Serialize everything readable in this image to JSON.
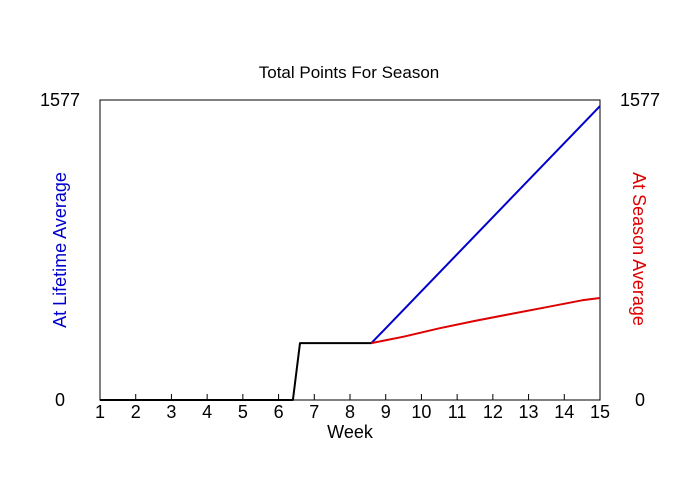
{
  "chart_data": {
    "type": "line",
    "title": "Total Points For Season",
    "xlabel": "Week",
    "ylabel_left": "At Lifetime Average",
    "ylabel_right": "At Season Average",
    "xlim": [
      1,
      15
    ],
    "ylim": [
      0,
      1577
    ],
    "x_ticks": [
      "1",
      "2",
      "3",
      "4",
      "5",
      "6",
      "7",
      "8",
      "9",
      "10",
      "11",
      "12",
      "13",
      "14",
      "15"
    ],
    "y_ticks_left": [
      "0",
      "1577"
    ],
    "y_ticks_right": [
      "0",
      "1577"
    ],
    "grid": false,
    "colors": {
      "actual": "#000000",
      "lifetime": "#0000cc",
      "season": "#dd0000"
    },
    "series": [
      {
        "key": "actual",
        "points": [
          [
            1,
            0
          ],
          [
            6.4,
            0
          ],
          [
            6.6,
            299
          ],
          [
            8.6,
            299
          ]
        ]
      },
      {
        "key": "lifetime",
        "points": [
          [
            8.6,
            299
          ],
          [
            15,
            1545
          ]
        ]
      },
      {
        "key": "season",
        "points": [
          [
            8.6,
            299
          ],
          [
            9.5,
            333
          ],
          [
            10.5,
            377
          ],
          [
            11.5,
            416
          ],
          [
            12.5,
            452
          ],
          [
            13.5,
            488
          ],
          [
            14.5,
            524
          ],
          [
            15,
            536
          ]
        ]
      }
    ]
  }
}
